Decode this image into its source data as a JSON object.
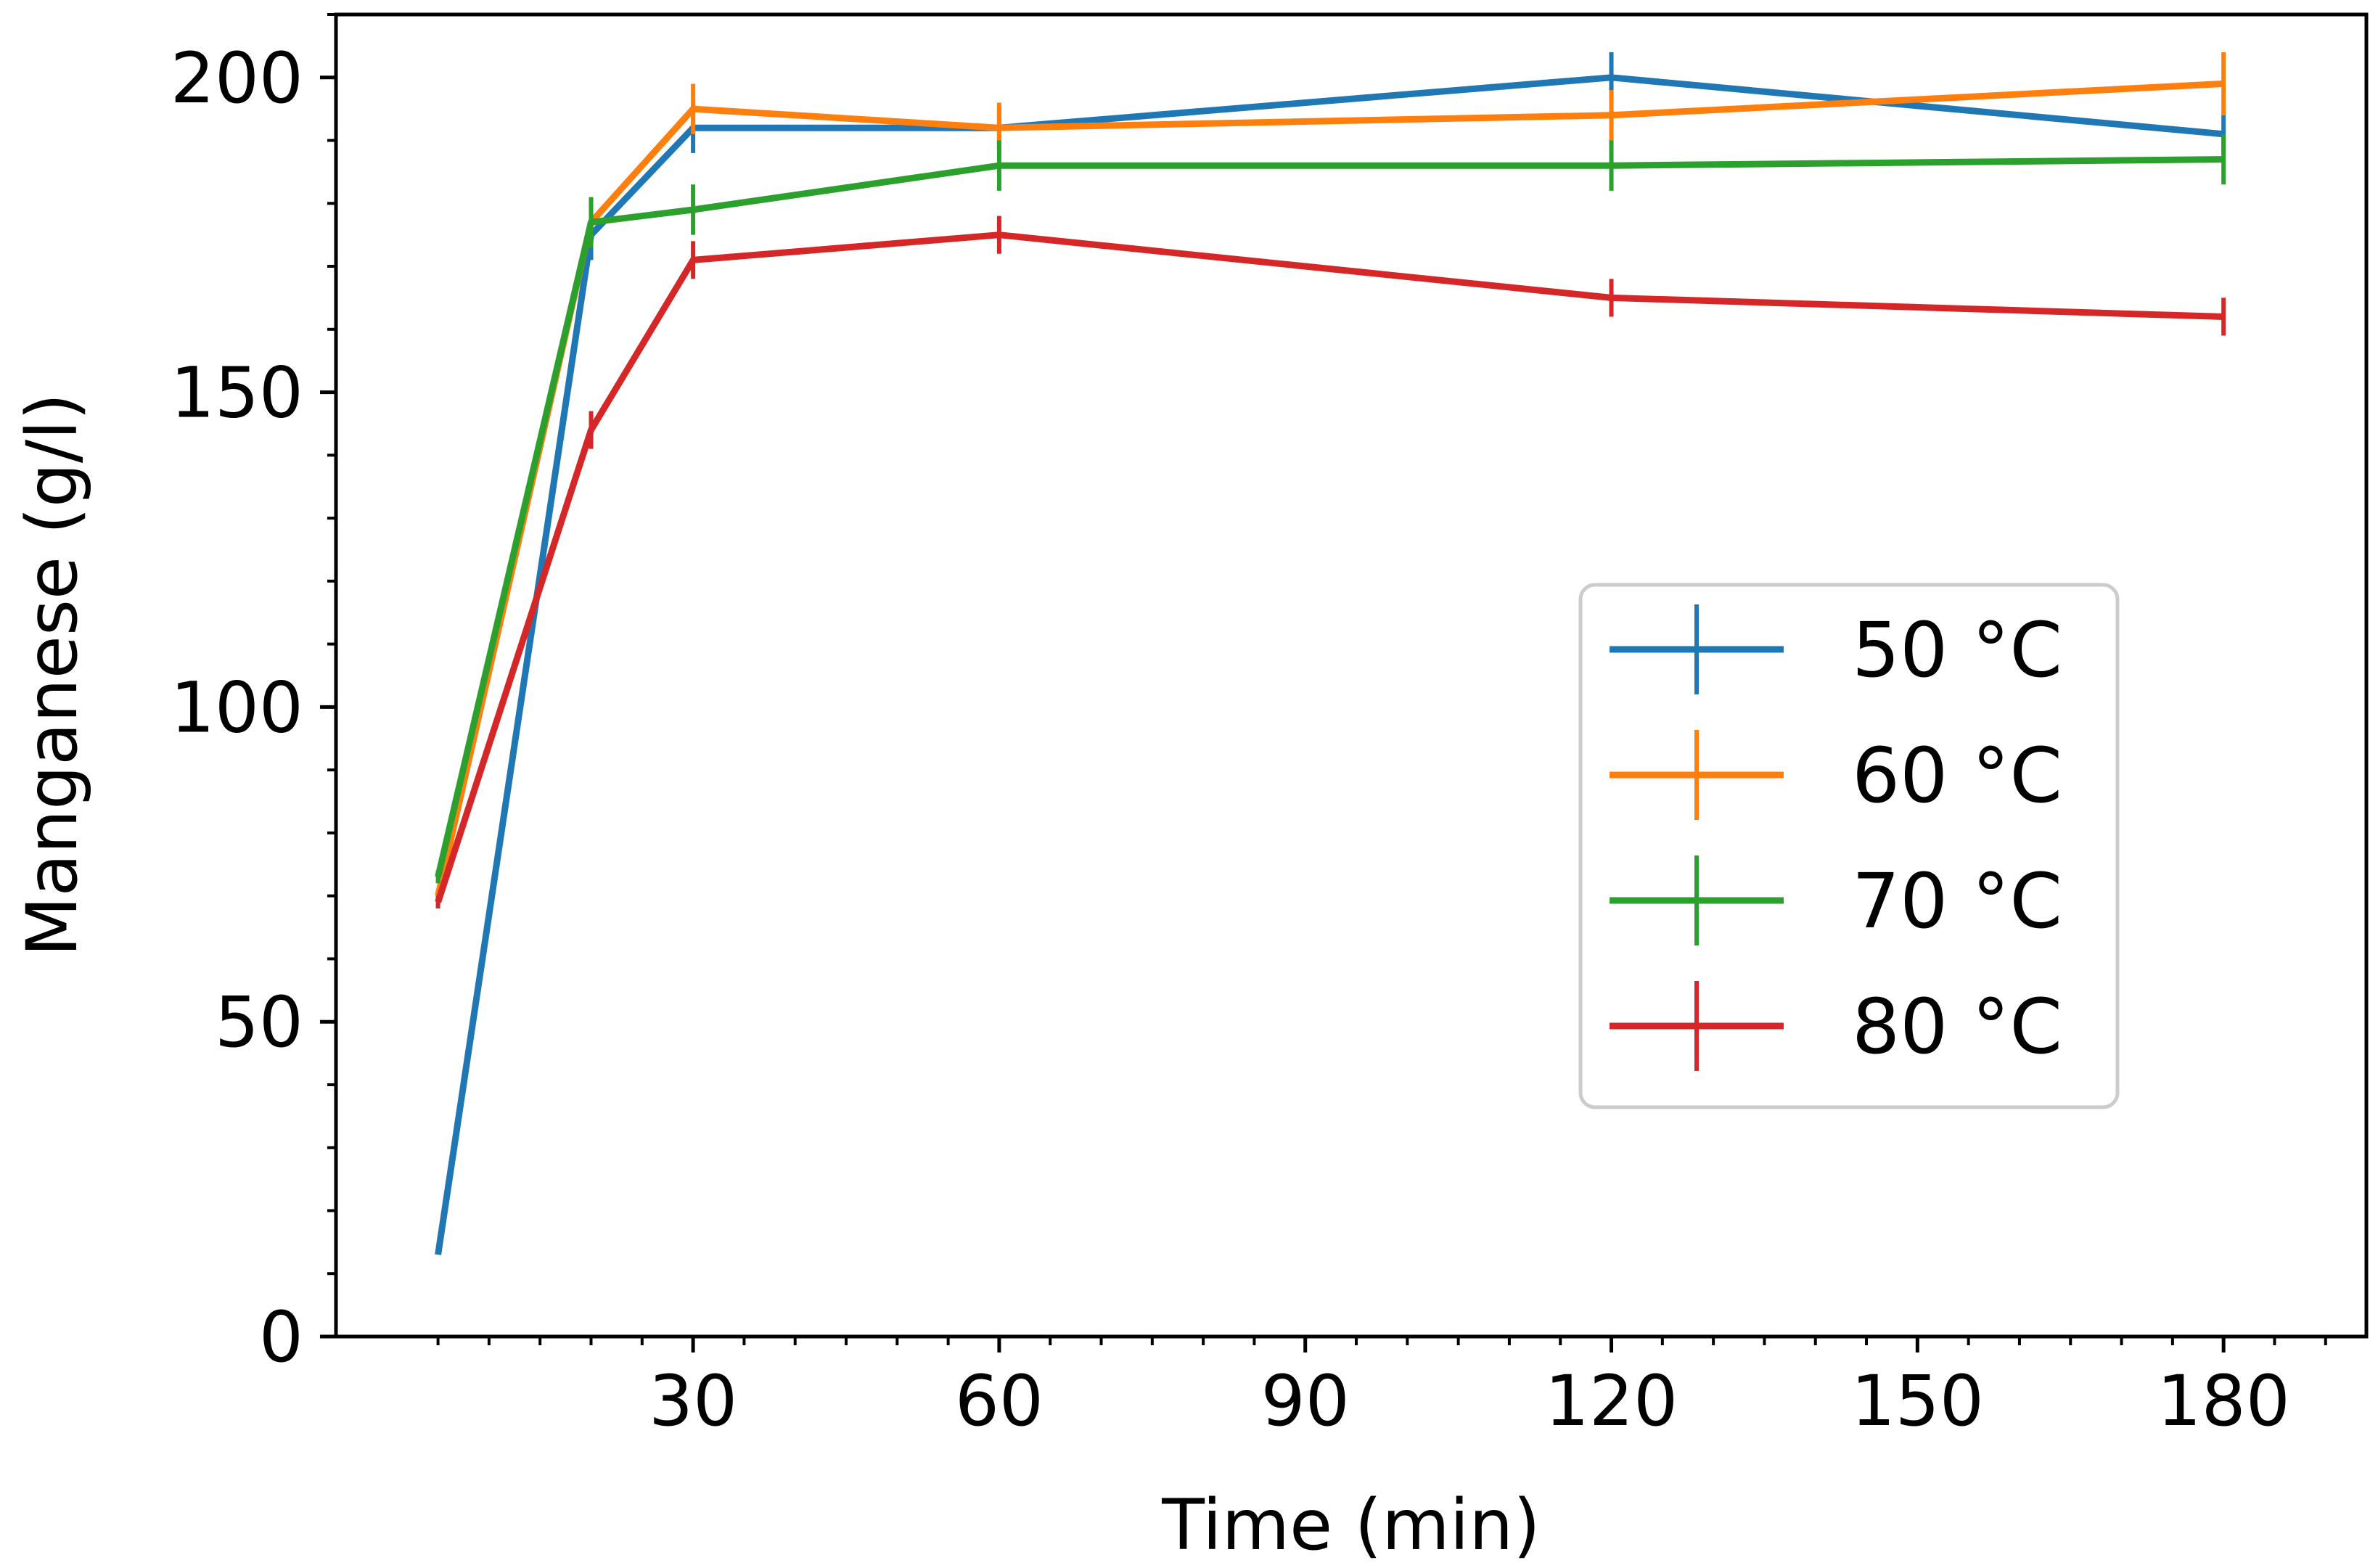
{
  "chart_data": {
    "type": "line",
    "title": "",
    "xlabel": "Time  (min)",
    "ylabel": "Manganese  (g/l)",
    "xlim": [
      -5,
      194
    ],
    "ylim": [
      0,
      210
    ],
    "x_ticks": [
      30,
      60,
      90,
      120,
      150,
      180
    ],
    "x_tick_labels": [
      "30",
      "60",
      "90",
      "120",
      "150",
      "180"
    ],
    "x_minor_step": 5,
    "y_ticks": [
      0,
      50,
      100,
      150,
      200
    ],
    "y_tick_labels": [
      "0",
      "50",
      "100",
      "150",
      "200"
    ],
    "y_minor_step": 10,
    "grid": false,
    "legend_position": "center-right",
    "series": [
      {
        "name": "50 °C",
        "color": "#1f77b4",
        "x": [
          5,
          20,
          30,
          60,
          120,
          180
        ],
        "values": [
          13,
          175,
          192,
          192,
          200,
          191
        ],
        "errors": [
          0,
          4,
          4,
          3,
          4,
          3
        ]
      },
      {
        "name": "60 °C",
        "color": "#ff7f0e",
        "x": [
          5,
          20,
          30,
          60,
          120,
          180
        ],
        "values": [
          70,
          177,
          195,
          192,
          194,
          199
        ],
        "errors": [
          1,
          3,
          4,
          4,
          4,
          5
        ]
      },
      {
        "name": "70 °C",
        "color": "#2ca02c",
        "x": [
          5,
          20,
          30,
          60,
          120,
          180
        ],
        "values": [
          73,
          177,
          179,
          186,
          186,
          187
        ],
        "errors": [
          1,
          4,
          4,
          4,
          4,
          4
        ]
      },
      {
        "name": "80 °C",
        "color": "#d62728",
        "x": [
          5,
          20,
          30,
          60,
          120,
          180
        ],
        "values": [
          69,
          144,
          171,
          175,
          165,
          162
        ],
        "errors": [
          1,
          3,
          3,
          3,
          3,
          3
        ]
      }
    ]
  }
}
